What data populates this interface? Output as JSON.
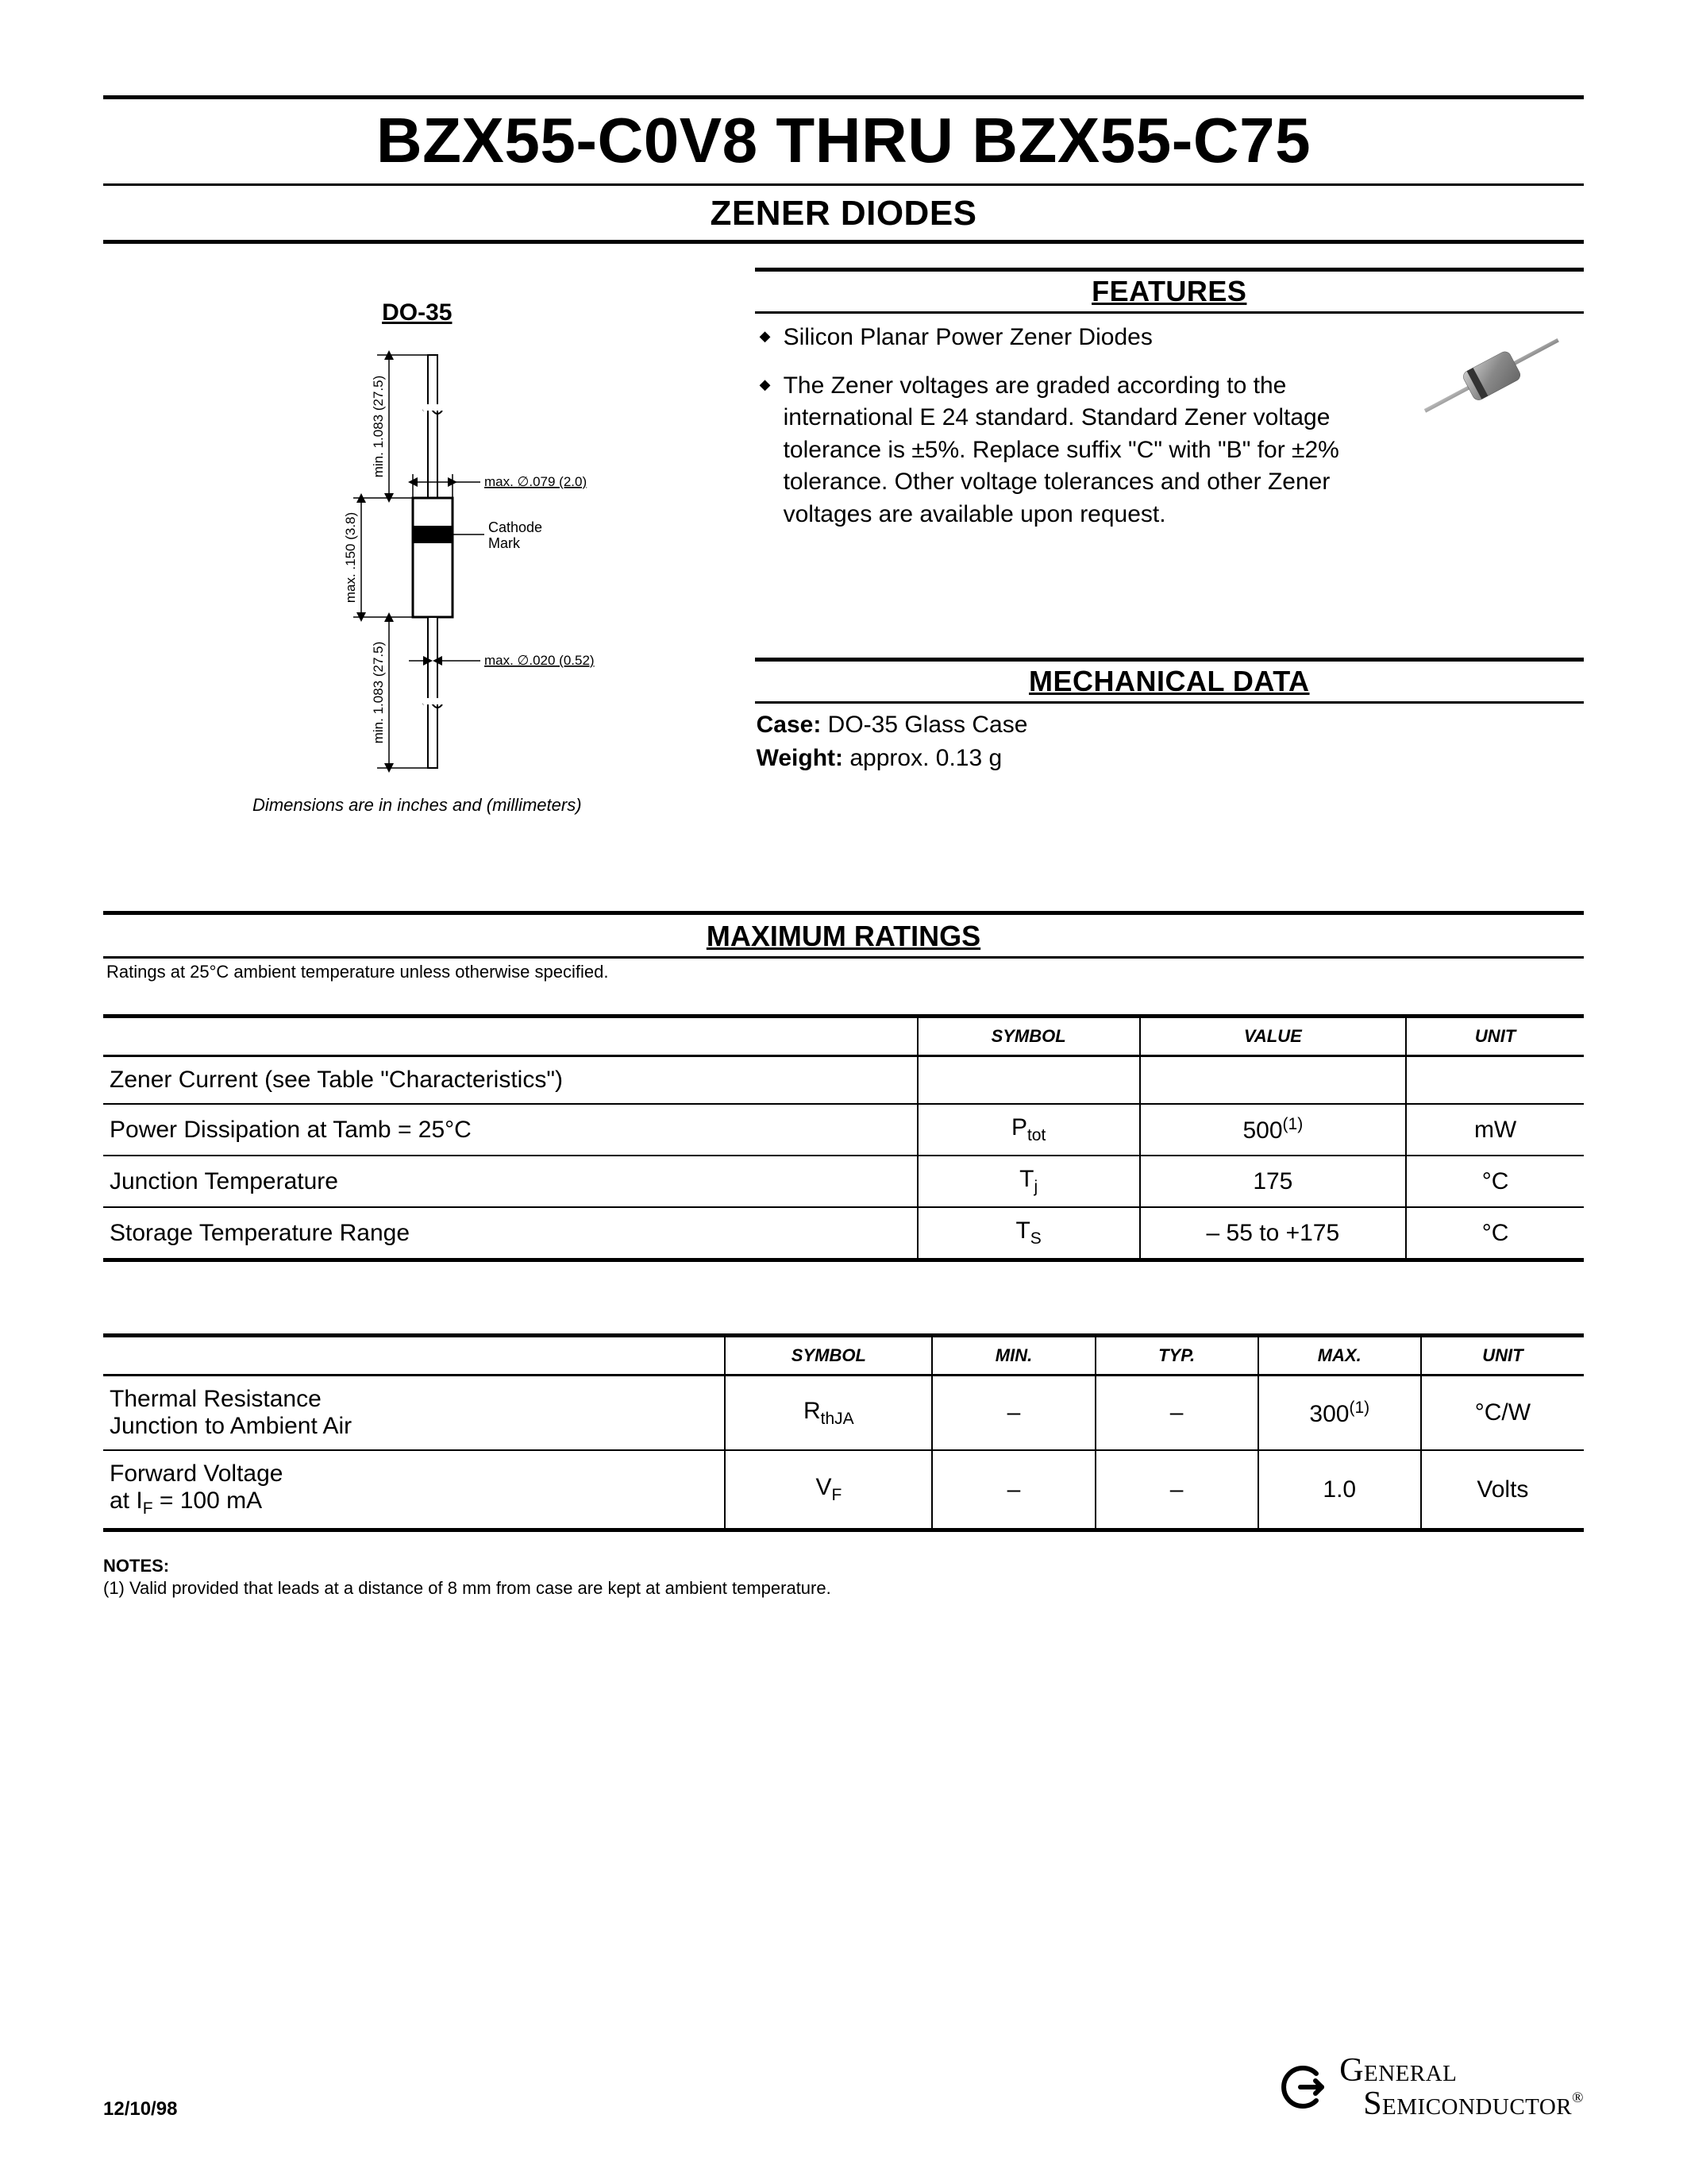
{
  "title": "BZX55-C0V8 THRU BZX55-C75",
  "subtitle": "ZENER DIODES",
  "do35_label": "DO-35",
  "do35_caption": "Dimensions are in inches and (millimeters)",
  "do35_drawing": {
    "labels": {
      "max_150": "max. .150 (3.8)",
      "min_1083_top": "min. 1.083 (27.5)",
      "min_1083_bot": "min. 1.083 (27.5)",
      "max_dia_079": "max. ∅.079 (2.0)",
      "max_dia_020": "max. ∅.020 (0.52)",
      "cathode": "Cathode Mark"
    }
  },
  "features_head": "FEATURES",
  "features": [
    "Silicon Planar Power Zener Diodes",
    "The Zener voltages are graded according to the international E 24 standard. Standard Zener voltage tolerance is ±5%. Replace suffix \"C\" with \"B\" for ±2% tolerance. Other voltage tolerances and other Zener voltages are available upon request."
  ],
  "mech_head": "MECHANICAL DATA",
  "mech": {
    "case_label": "Case:",
    "case_value": "DO-35 Glass Case",
    "weight_label": "Weight:",
    "weight_value": "approx. 0.13 g"
  },
  "max_ratings_head": "MAXIMUM RATINGS",
  "max_ratings_note": "Ratings at 25°C ambient temperature unless otherwise specified.",
  "table1": {
    "headers": [
      "",
      "SYMBOL",
      "VALUE",
      "UNIT"
    ],
    "col_widths": [
      "55%",
      "15%",
      "18%",
      "12%"
    ],
    "rows": [
      {
        "label_html": "Zener Current (see Table \"Characteristics\")",
        "symbol_html": "",
        "value_html": "",
        "unit": ""
      },
      {
        "label_html": "Power Dissipation at Tamb = 25°C",
        "symbol_html": "P<span class=\"sub\">tot</span>",
        "value_html": "500<span class=\"sup\">(1)</span>",
        "unit": "mW"
      },
      {
        "label_html": "Junction Temperature",
        "symbol_html": "T<span class=\"sub\">j</span>",
        "value_html": "175",
        "unit": "°C"
      },
      {
        "label_html": "Storage Temperature Range",
        "symbol_html": "T<span class=\"sub\">S</span>",
        "value_html": "– 55 to +175",
        "unit": "°C"
      }
    ]
  },
  "table2": {
    "headers": [
      "",
      "SYMBOL",
      "MIN.",
      "TYP.",
      "MAX.",
      "UNIT"
    ],
    "col_widths": [
      "42%",
      "14%",
      "11%",
      "11%",
      "11%",
      "11%"
    ],
    "rows": [
      {
        "label_html": "Thermal Resistance<br>Junction to Ambient Air",
        "symbol_html": "R<span class=\"sub\">thJA</span>",
        "min": "–",
        "typ": "–",
        "max_html": "300<span class=\"sup\">(1)</span>",
        "unit": "°C/W"
      },
      {
        "label_html": "Forward Voltage<br>at I<span class=\"sub\">F</span> = 100 mA",
        "symbol_html": "V<span class=\"sub\">F</span>",
        "min": "–",
        "typ": "–",
        "max_html": "1.0",
        "unit": "Volts"
      }
    ]
  },
  "notes_head": "NOTES:",
  "notes": "(1) Valid provided that leads at a distance of 8 mm from case are kept at ambient temperature.",
  "footer_date": "12/10/98",
  "company_line1": "General",
  "company_line2": "Semiconductor"
}
